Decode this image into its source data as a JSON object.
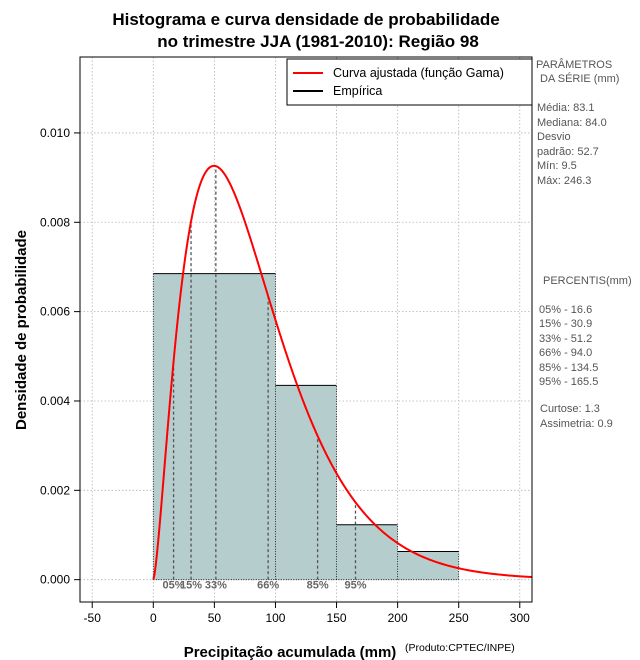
{
  "chart_data": {
    "type": "bar",
    "title_line1": "Histograma e curva densidade de probabilidade",
    "title_line2": "no trimestre JJA (1981-2010): Região 98",
    "xlabel": "Precipitação acumulada (mm)",
    "ylabel": "Densidade de probabilidade",
    "credit": "(Produto:CPTEC/INPE)",
    "xlim": [
      -60,
      310
    ],
    "ylim": [
      -0.0005,
      0.0117
    ],
    "xticks": [
      -50,
      0,
      50,
      100,
      150,
      200,
      250,
      300
    ],
    "yticks": [
      0.0,
      0.002,
      0.004,
      0.006,
      0.008,
      0.01
    ],
    "ytick_labels": [
      "0.000",
      "0.002",
      "0.004",
      "0.006",
      "0.008",
      "0.010"
    ],
    "grid": true,
    "histogram": {
      "bins": [
        [
          0,
          100
        ],
        [
          100,
          150
        ],
        [
          150,
          200
        ],
        [
          200,
          250
        ]
      ],
      "densities": [
        0.00685,
        0.00435,
        0.00123,
        0.00063
      ],
      "fill": "#b5cecd"
    },
    "gamma_curve": {
      "name": "Curva ajustada (função Gama)",
      "mean": 83.1,
      "sd": 52.7,
      "color": "#ff0000"
    },
    "legend": {
      "position": "top-right",
      "entries": [
        {
          "label": "Curva ajustada (função Gama)",
          "color": "#ff0000"
        },
        {
          "label": "Empírica",
          "color": "#000000"
        }
      ]
    },
    "percentile_markers": [
      {
        "label": "05%",
        "value": 16.6
      },
      {
        "label": "15%",
        "value": 30.9
      },
      {
        "label": "33%",
        "value": 51.2
      },
      {
        "label": "66%",
        "value": 94.0
      },
      {
        "label": "85%",
        "value": 134.5
      },
      {
        "label": "95%",
        "value": 165.5
      }
    ],
    "side_panel": {
      "params_heading_1": "PARÂMETROS",
      "params_heading_2": "DA SÉRIE (mm)",
      "params": [
        "Média:  83.1",
        "Mediana:  84.0",
        "Desvio",
        "padrão:  52.7",
        "Mín:  9.5",
        "Máx:  246.3"
      ],
      "percentis_heading": "PERCENTIS(mm)",
      "percentis": [
        "05% -   16.6",
        "15% -   30.9",
        "33% -   51.2",
        "66% -   94.0",
        "85% -   134.5",
        "95% -   165.5"
      ],
      "stats": [
        "Curtose:  1.3",
        "Assimetria:  0.9"
      ]
    }
  }
}
